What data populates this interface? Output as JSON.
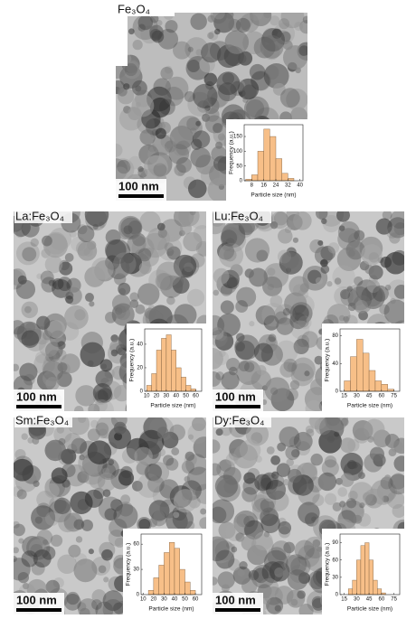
{
  "chart_data": [
    {
      "type": "histogram",
      "panel_label": "Fe₃O₄",
      "scale_bar": "100 nm",
      "x_label": "Particle size (nm)",
      "y_label": "Frequency (a.u.)",
      "bins": [
        4,
        8,
        12,
        16,
        20,
        24,
        28,
        32,
        36
      ],
      "values": [
        5,
        20,
        100,
        175,
        150,
        75,
        25,
        8
      ],
      "xlim": [
        3,
        42
      ],
      "ylim": [
        0,
        190
      ],
      "xticks": [
        8,
        16,
        24,
        32,
        40
      ],
      "yticks": [
        0,
        50,
        100,
        150
      ],
      "color": "#f7bf88"
    },
    {
      "type": "histogram",
      "panel_label": "La:Fe₃O₄",
      "scale_bar": "100 nm",
      "x_label": "Particle size (nm)",
      "y_label": "Frequency (a.u.)",
      "bins": [
        10,
        15,
        20,
        25,
        30,
        35,
        40,
        45,
        50,
        55,
        60
      ],
      "values": [
        5,
        15,
        35,
        45,
        48,
        35,
        20,
        12,
        5,
        2
      ],
      "xlim": [
        8,
        66
      ],
      "ylim": [
        0,
        53
      ],
      "xticks": [
        10,
        20,
        30,
        40,
        50,
        60
      ],
      "yticks": [
        0,
        20,
        40
      ],
      "color": "#f7bf88"
    },
    {
      "type": "histogram",
      "panel_label": "Lu:Fe₃O₄",
      "scale_bar": "100 nm",
      "x_label": "Particle size (nm)",
      "y_label": "Frequency (a.u.)",
      "bins": [
        15,
        22.5,
        30,
        37.5,
        45,
        52.5,
        60,
        67.5,
        75
      ],
      "values": [
        15,
        50,
        75,
        55,
        30,
        15,
        10,
        3
      ],
      "xlim": [
        10,
        82
      ],
      "ylim": [
        0,
        90
      ],
      "xticks": [
        15,
        30,
        45,
        60,
        75
      ],
      "yticks": [
        0,
        40,
        80
      ],
      "color": "#f7bf88"
    },
    {
      "type": "histogram",
      "panel_label": "Sm:Fe₃O₄",
      "scale_bar": "100 nm",
      "x_label": "Particle size (nm)",
      "y_label": "Frequency (a.u.)",
      "bins": [
        15,
        20,
        25,
        30,
        35,
        40,
        45,
        50,
        55,
        60
      ],
      "values": [
        5,
        20,
        35,
        50,
        62,
        55,
        30,
        15,
        5
      ],
      "xlim": [
        8,
        66
      ],
      "ylim": [
        0,
        72
      ],
      "xticks": [
        10,
        20,
        30,
        40,
        50,
        60
      ],
      "yticks": [
        0,
        30,
        60
      ],
      "color": "#f7bf88"
    },
    {
      "type": "histogram",
      "panel_label": "Dy:Fe₃O₄",
      "scale_bar": "100 nm",
      "x_label": "Particle size (nm)",
      "y_label": "Frequency (a.u.)",
      "bins": [
        20,
        25,
        30,
        35,
        40,
        45,
        50,
        55,
        60,
        65
      ],
      "values": [
        10,
        25,
        60,
        85,
        90,
        60,
        25,
        10,
        3
      ],
      "xlim": [
        10,
        82
      ],
      "ylim": [
        0,
        105
      ],
      "xticks": [
        15,
        30,
        45,
        60,
        75
      ],
      "yticks": [
        0,
        30,
        60,
        90
      ],
      "color": "#f7bf88"
    }
  ]
}
